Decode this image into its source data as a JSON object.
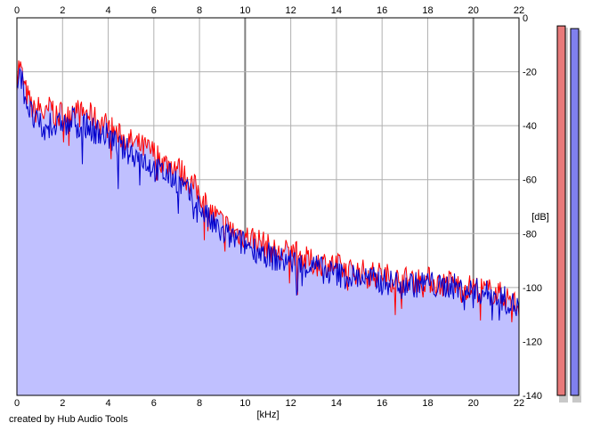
{
  "credit": "created by Hub Audio Tools",
  "chart_data": {
    "type": "line",
    "xlabel": "[kHz]",
    "ylabel": "[dB]",
    "xlim": [
      0,
      22
    ],
    "ylim": [
      -140,
      0
    ],
    "x_ticks": [
      0,
      2,
      4,
      6,
      8,
      10,
      12,
      14,
      16,
      18,
      20,
      22
    ],
    "y_ticks": [
      0,
      -20,
      -40,
      -60,
      -80,
      -100,
      -120,
      -140
    ],
    "grid": true,
    "fill_color": "#c0c0ff",
    "series": [
      {
        "color": "#ff0000",
        "x": [
          0.0,
          0.1,
          0.2,
          0.3,
          0.5,
          0.75,
          1.0,
          1.25,
          1.5,
          1.75,
          2.0,
          2.25,
          2.5,
          2.75,
          3.0,
          3.5,
          4.0,
          4.5,
          5.0,
          5.5,
          6.0,
          6.5,
          7.0,
          7.5,
          8.0,
          8.5,
          9.0,
          9.5,
          10.0,
          10.5,
          11.0,
          11.5,
          12.0,
          12.5,
          13.0,
          13.5,
          14.0,
          14.5,
          15.0,
          15.5,
          16.0,
          16.5,
          17.0,
          17.5,
          18.0,
          18.5,
          19.0,
          19.5,
          20.0,
          20.5,
          21.0,
          21.5,
          22.0
        ],
        "values": [
          -22,
          -17,
          -20,
          -25,
          -30,
          -35,
          -33,
          -37,
          -32,
          -38,
          -34,
          -37,
          -32,
          -36,
          -35,
          -38,
          -40,
          -44,
          -46,
          -48,
          -50,
          -54,
          -55,
          -60,
          -65,
          -72,
          -76,
          -79,
          -81,
          -82,
          -85,
          -88,
          -86,
          -89,
          -91,
          -91,
          -92,
          -94,
          -94,
          -95,
          -95,
          -97,
          -97,
          -97,
          -97,
          -99,
          -98,
          -100,
          -100,
          -101,
          -102,
          -104,
          -107
        ]
      },
      {
        "color": "#0000cc",
        "x": [
          0.0,
          0.1,
          0.2,
          0.3,
          0.5,
          0.75,
          1.0,
          1.25,
          1.5,
          1.75,
          2.0,
          2.25,
          2.5,
          2.75,
          3.0,
          3.5,
          4.0,
          4.5,
          5.0,
          5.5,
          6.0,
          6.5,
          7.0,
          7.5,
          8.0,
          8.5,
          9.0,
          9.5,
          10.0,
          10.5,
          11.0,
          11.5,
          12.0,
          12.5,
          13.0,
          13.5,
          14.0,
          14.5,
          15.0,
          15.5,
          16.0,
          16.5,
          17.0,
          17.5,
          18.0,
          18.5,
          19.0,
          19.5,
          20.0,
          20.5,
          21.0,
          21.5,
          22.0
        ],
        "values": [
          -25,
          -17,
          -22,
          -27,
          -33,
          -38,
          -40,
          -43,
          -38,
          -41,
          -38,
          -41,
          -37,
          -40,
          -40,
          -42,
          -44,
          -48,
          -50,
          -52,
          -56,
          -58,
          -60,
          -65,
          -70,
          -76,
          -80,
          -82,
          -84,
          -86,
          -88,
          -90,
          -90,
          -92,
          -92,
          -94,
          -95,
          -96,
          -96,
          -97,
          -98,
          -98,
          -98,
          -99,
          -98,
          -100,
          -99,
          -101,
          -101,
          -102,
          -103,
          -105,
          -108
        ]
      }
    ],
    "meters": [
      {
        "color": "#e87a7a",
        "level_db": -3
      },
      {
        "color": "#8080ee",
        "level_db": -4
      }
    ]
  }
}
